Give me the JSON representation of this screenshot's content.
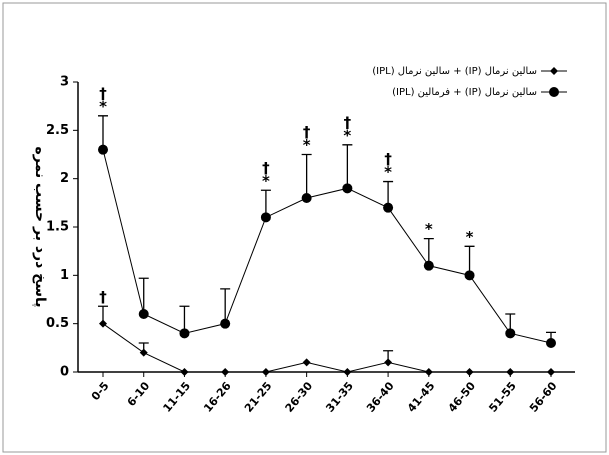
{
  "chart_data": {
    "type": "line",
    "y_label": "پاسخ درد بر حسب نمره",
    "categories": [
      "0-5",
      "6-10",
      "11-15",
      "16-26",
      "21-25",
      "26-30",
      "31-35",
      "36-40",
      "41-45",
      "46-50",
      "51-55",
      "56-60"
    ],
    "series": [
      {
        "name": "سالین نرمال (IP) + سالین نرمال (IPL)",
        "marker": "diamond",
        "color": "#000000",
        "values": [
          0.5,
          0.2,
          0,
          0,
          0,
          0.1,
          0,
          0.1,
          0,
          0,
          0,
          0
        ],
        "errors": [
          0.18,
          0.1,
          0,
          0,
          0,
          0,
          0,
          0.12,
          0,
          0,
          0,
          0
        ],
        "annotations": [
          [
            "†"
          ],
          null,
          null,
          null,
          null,
          null,
          null,
          null,
          null,
          null,
          null,
          null
        ]
      },
      {
        "name": "سالین نرمال (IP) + فرمالین (IPL)",
        "marker": "circle",
        "color": "#000000",
        "values": [
          2.3,
          0.6,
          0.4,
          0.5,
          1.6,
          1.8,
          1.9,
          1.7,
          1.1,
          1.0,
          0.4,
          0.3
        ],
        "errors": [
          0.35,
          0.37,
          0.28,
          0.36,
          0.28,
          0.45,
          0.45,
          0.27,
          0.28,
          0.3,
          0.2,
          0.11
        ],
        "annotations": [
          [
            "†",
            "*"
          ],
          null,
          null,
          null,
          [
            "†",
            "*"
          ],
          [
            "†",
            "*"
          ],
          [
            "†",
            "*"
          ],
          [
            "†",
            "*"
          ],
          [
            "*"
          ],
          [
            "*"
          ],
          null,
          null
        ]
      }
    ],
    "ylim": [
      0,
      3
    ],
    "yticks": [
      0,
      0.5,
      1,
      1.5,
      2,
      2.5,
      3
    ],
    "legend": "top-right"
  }
}
